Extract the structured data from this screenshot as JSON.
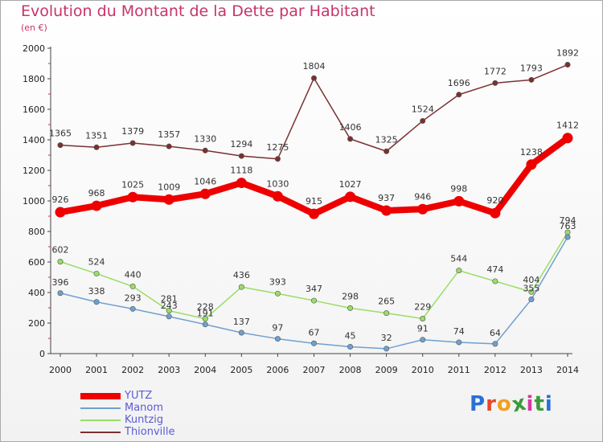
{
  "title": "Evolution du Montant de la Dette par Habitant",
  "subtitle": "(en €)",
  "logo_text": "Proxiti",
  "chart_data": {
    "type": "line",
    "x": [
      "2000",
      "2001",
      "2002",
      "2003",
      "2004",
      "2005",
      "2006",
      "2007",
      "2008",
      "2009",
      "2010",
      "2011",
      "2012",
      "2013",
      "2014"
    ],
    "ylim": [
      0,
      2000
    ],
    "yticks": [
      0,
      200,
      400,
      600,
      800,
      1000,
      1200,
      1400,
      1600,
      1800,
      2000
    ],
    "grid": false,
    "legend_position": "bottom-left",
    "series": [
      {
        "name": "YUTZ",
        "color": "#ee0000",
        "values": [
          926,
          968,
          1025,
          1009,
          1046,
          1118,
          1030,
          915,
          1027,
          937,
          946,
          998,
          920,
          1238,
          1412
        ]
      },
      {
        "name": "Manom",
        "color": "#6fa0cf",
        "values": [
          396,
          338,
          293,
          243,
          191,
          137,
          97,
          67,
          45,
          32,
          91,
          74,
          64,
          355,
          763
        ]
      },
      {
        "name": "Kuntzig",
        "color": "#99dd66",
        "values": [
          602,
          524,
          440,
          281,
          228,
          436,
          393,
          347,
          298,
          265,
          229,
          544,
          474,
          404,
          794
        ]
      },
      {
        "name": "Thionville",
        "color": "#7b3030",
        "values": [
          1365,
          1351,
          1379,
          1357,
          1330,
          1294,
          1275,
          1804,
          1406,
          1325,
          1524,
          1696,
          1772,
          1793,
          1892
        ]
      }
    ]
  }
}
